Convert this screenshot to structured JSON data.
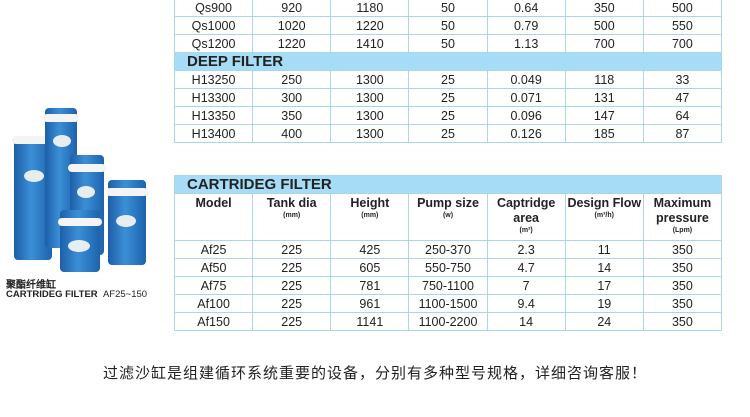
{
  "sand_table": {
    "rows": [
      [
        "Qs900",
        "920",
        "1180",
        "50",
        "0.64",
        "350",
        "500"
      ],
      [
        "Qs1000",
        "1020",
        "1220",
        "50",
        "0.79",
        "500",
        "550"
      ],
      [
        "Qs1200",
        "1220",
        "1410",
        "50",
        "1.13",
        "700",
        "700"
      ]
    ]
  },
  "deep_filter": {
    "title": "DEEP FILTER",
    "rows": [
      [
        "H13250",
        "250",
        "1300",
        "25",
        "0.049",
        "118",
        "33"
      ],
      [
        "H13300",
        "300",
        "1300",
        "25",
        "0.071",
        "131",
        "47"
      ],
      [
        "H13350",
        "350",
        "1300",
        "25",
        "0.096",
        "147",
        "64"
      ],
      [
        "H13400",
        "400",
        "1300",
        "25",
        "0.126",
        "185",
        "87"
      ]
    ]
  },
  "cartridge": {
    "title": "CARTRIDEG FILTER",
    "headers": [
      {
        "label": "Model",
        "unit": ""
      },
      {
        "label": "Tank dia",
        "unit": "(mm)"
      },
      {
        "label": "Height",
        "unit": "(mm)"
      },
      {
        "label": "Pump size",
        "unit": "(w)"
      },
      {
        "label": "Captridge area",
        "unit": "(m²)"
      },
      {
        "label": "Design Flow",
        "unit": "(m³/h)"
      },
      {
        "label": "Maximum pressure",
        "unit": "(Lpm)"
      }
    ],
    "rows": [
      [
        "Af25",
        "225",
        "425",
        "250-370",
        "2.3",
        "11",
        "350"
      ],
      [
        "Af50",
        "225",
        "605",
        "550-750",
        "4.7",
        "14",
        "350"
      ],
      [
        "Af75",
        "225",
        "781",
        "750-1100",
        "7",
        "17",
        "350"
      ],
      [
        "Af100",
        "225",
        "961",
        "1100-1500",
        "9.4",
        "19",
        "350"
      ],
      [
        "Af150",
        "225",
        "1141",
        "1100-2200",
        "14",
        "24",
        "350"
      ]
    ]
  },
  "product": {
    "cn_name": "聚酯纤维缸",
    "en_name": "CARTRIDEG FILTER",
    "range": "AF25~150"
  },
  "caption": "过滤沙缸是组建循环系统重要的设备，分别有多种型号规格，详细咨询客服！"
}
